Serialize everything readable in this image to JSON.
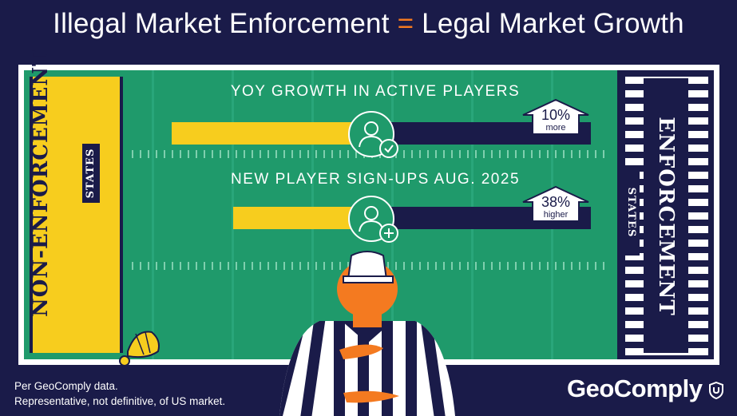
{
  "title": {
    "left": "Illegal Market Enforcement",
    "equals": "=",
    "right": "Legal Market Growth"
  },
  "left_endzone": {
    "main": "NON-ENFORCEMENT",
    "sub": "STATES"
  },
  "right_endzone": {
    "main": "ENFORCEMENT",
    "sub": "STATES"
  },
  "stats": [
    {
      "heading": "YOY GROWTH IN ACTIVE PLAYERS",
      "badge_value": "10%",
      "badge_label": "more",
      "icon": "user-check-icon"
    },
    {
      "heading": "NEW PLAYER SIGN-UPS AUG. 2025",
      "badge_value": "38%",
      "badge_label": "higher",
      "icon": "user-plus-icon"
    }
  ],
  "footnote": {
    "line1": "Per GeoComply data.",
    "line2": "Representative, not definitive, of US market."
  },
  "brand": "GeoComply",
  "colors": {
    "background": "#1a1b49",
    "field": "#1f9a6b",
    "accent": "#f47a20",
    "yellow": "#f7cd1e"
  }
}
